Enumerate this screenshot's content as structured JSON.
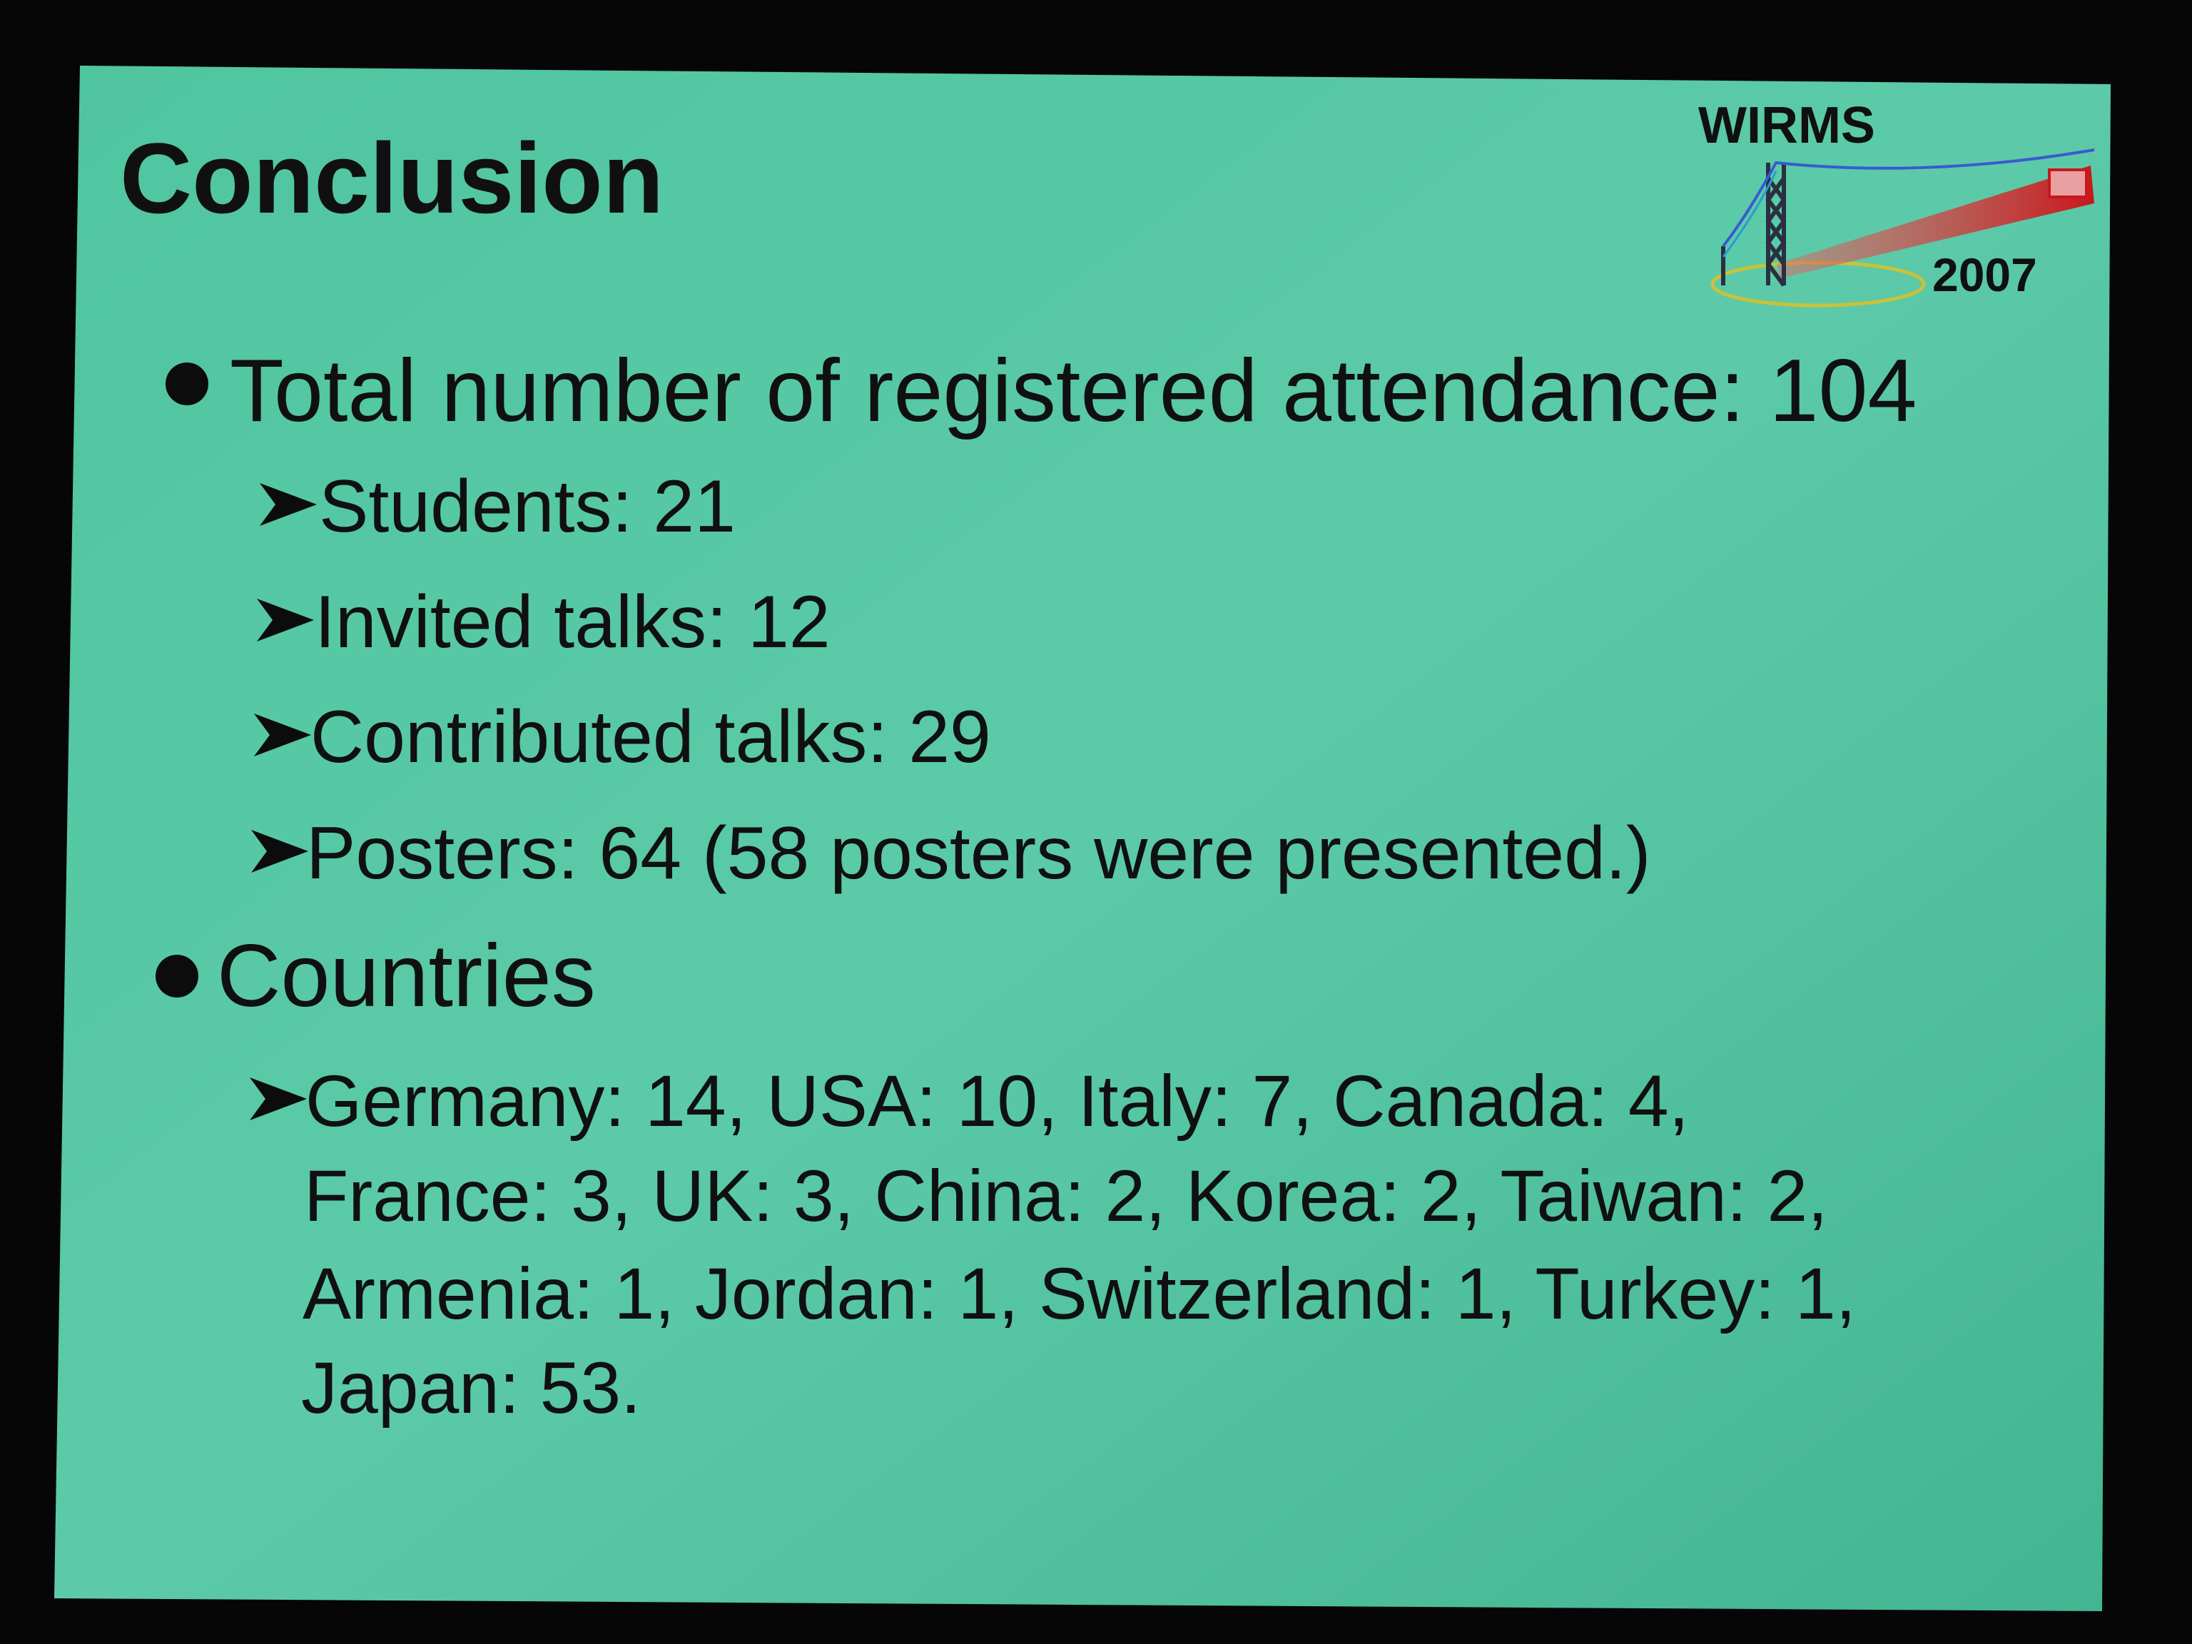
{
  "title": "Conclusion",
  "logo": {
    "name": "WIRMS",
    "year": "2007"
  },
  "bullets": [
    {
      "text": "Total number of registered attendance: 104",
      "items": [
        "Students: 21",
        "Invited talks: 12",
        "Contributed talks: 29",
        "Posters: 64 (58 posters were presented.)"
      ]
    },
    {
      "text": "Countries",
      "lines": [
        "Germany: 14, USA: 10, Italy: 7, Canada: 4,",
        "France: 3, UK: 3, China: 2, Korea: 2, Taiwan: 2,",
        "Armenia: 1, Jordan: 1, Switzerland: 1, Turkey: 1,",
        "Japan: 53."
      ]
    }
  ]
}
